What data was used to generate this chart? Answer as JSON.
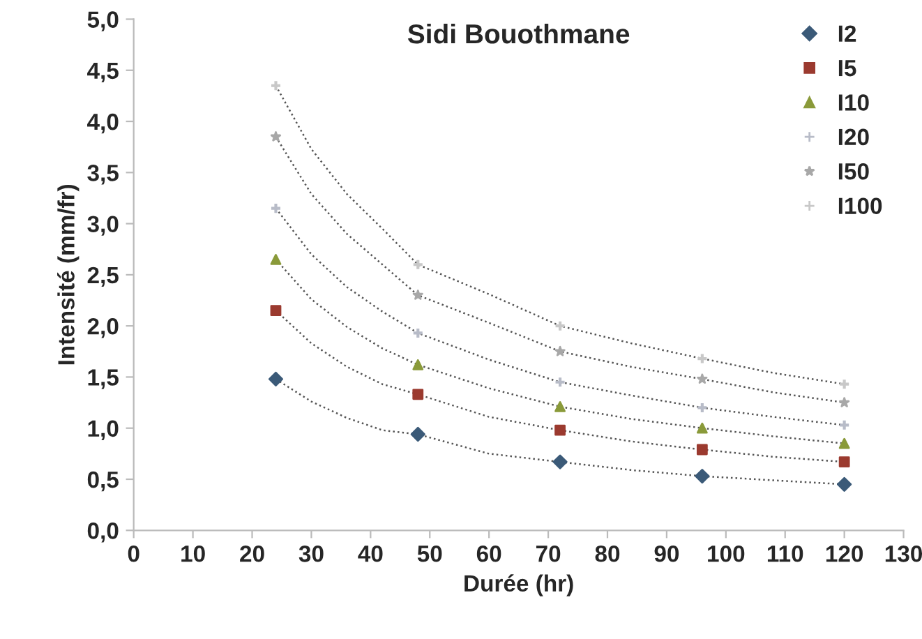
{
  "chart_data": {
    "type": "scatter",
    "title": "Sidi Bouothmane",
    "xlabel": "Durée (hr)",
    "ylabel": "Intensité (mm/fr)",
    "x": [
      24,
      48,
      72,
      96,
      120
    ],
    "series": [
      {
        "name": "I2",
        "color": "#3b5a78",
        "marker": "diamond",
        "values": [
          1.48,
          0.94,
          0.67,
          0.53,
          0.45
        ]
      },
      {
        "name": "I5",
        "color": "#9b3a2f",
        "marker": "square",
        "values": [
          2.15,
          1.33,
          0.98,
          0.79,
          0.67
        ]
      },
      {
        "name": "I10",
        "color": "#8a9a3a",
        "marker": "triangle",
        "values": [
          2.65,
          1.62,
          1.21,
          1.0,
          0.85
        ]
      },
      {
        "name": "I20",
        "color": "#b8bcc8",
        "marker": "cross",
        "values": [
          3.15,
          1.93,
          1.45,
          1.2,
          1.03
        ]
      },
      {
        "name": "I50",
        "color": "#a8a8a8",
        "marker": "star",
        "values": [
          3.85,
          2.3,
          1.75,
          1.48,
          1.25
        ]
      },
      {
        "name": "I100",
        "color": "#c8c8c8",
        "marker": "cross",
        "values": [
          4.35,
          2.6,
          2.0,
          1.68,
          1.43
        ]
      },
      {
        "type": "line",
        "color": "#555555",
        "line_style": "dotted",
        "marker": "none",
        "x": [
          24,
          30,
          36,
          42,
          48,
          60,
          72,
          84,
          96,
          108,
          120
        ],
        "values": [
          1.48,
          1.26,
          1.1,
          0.98,
          0.94,
          0.75,
          0.67,
          0.59,
          0.53,
          0.49,
          0.45
        ]
      },
      {
        "type": "line",
        "color": "#555555",
        "line_style": "dotted",
        "marker": "none",
        "x": [
          24,
          30,
          36,
          42,
          48,
          60,
          72,
          84,
          96,
          108,
          120
        ],
        "values": [
          2.15,
          1.83,
          1.6,
          1.43,
          1.33,
          1.11,
          0.98,
          0.87,
          0.79,
          0.72,
          0.67
        ]
      },
      {
        "type": "line",
        "color": "#555555",
        "line_style": "dotted",
        "marker": "none",
        "x": [
          24,
          30,
          36,
          42,
          48,
          60,
          72,
          84,
          96,
          108,
          120
        ],
        "values": [
          2.65,
          2.26,
          1.99,
          1.78,
          1.62,
          1.39,
          1.21,
          1.09,
          1.0,
          0.92,
          0.85
        ]
      },
      {
        "type": "line",
        "color": "#555555",
        "line_style": "dotted",
        "marker": "none",
        "x": [
          24,
          30,
          36,
          42,
          48,
          60,
          72,
          84,
          96,
          108,
          120
        ],
        "values": [
          3.15,
          2.7,
          2.38,
          2.14,
          1.93,
          1.67,
          1.45,
          1.32,
          1.2,
          1.11,
          1.03
        ]
      },
      {
        "type": "line",
        "color": "#555555",
        "line_style": "dotted",
        "marker": "none",
        "x": [
          24,
          30,
          36,
          42,
          48,
          60,
          72,
          84,
          96,
          108,
          120
        ],
        "values": [
          3.85,
          3.29,
          2.9,
          2.6,
          2.3,
          2.03,
          1.75,
          1.6,
          1.48,
          1.35,
          1.25
        ]
      },
      {
        "type": "line",
        "color": "#555555",
        "line_style": "dotted",
        "marker": "none",
        "x": [
          24,
          30,
          36,
          42,
          48,
          60,
          72,
          84,
          96,
          108,
          120
        ],
        "values": [
          4.35,
          3.73,
          3.29,
          2.95,
          2.6,
          2.31,
          2.0,
          1.83,
          1.68,
          1.54,
          1.43
        ]
      }
    ],
    "xlim": [
      0,
      130
    ],
    "xticks": [
      0,
      10,
      20,
      30,
      40,
      50,
      60,
      70,
      80,
      90,
      100,
      110,
      120,
      130
    ],
    "ylim": [
      0,
      5
    ],
    "yticks": [
      {
        "value": 0,
        "label": "0,0"
      },
      {
        "value": 0.5,
        "label": "0,5"
      },
      {
        "value": 1,
        "label": "1,0"
      },
      {
        "value": 1.5,
        "label": "1,5"
      },
      {
        "value": 2,
        "label": "2,0"
      },
      {
        "value": 2.5,
        "label": "2,5"
      },
      {
        "value": 3,
        "label": "3,0"
      },
      {
        "value": 3.5,
        "label": "3,5"
      },
      {
        "value": 4,
        "label": "4,0"
      },
      {
        "value": 4.5,
        "label": "4,5"
      },
      {
        "value": 5,
        "label": "5,0"
      }
    ],
    "grid": false,
    "legend": "top right"
  }
}
